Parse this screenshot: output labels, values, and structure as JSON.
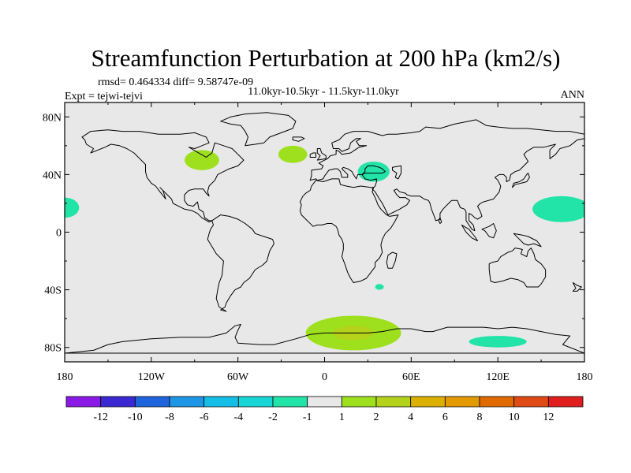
{
  "chart_data": {
    "type": "heatmap",
    "title": "Streamfunction Perturbation at 200 hPa (km2/s)",
    "stats": "rmsd= 0.464334 diff= 9.58747e-09",
    "left_label": "Expt = tejwi-tejvi",
    "center_label": "11.0kyr-10.5kyr - 11.5kyr-11.0kyr",
    "right_label": "ANN",
    "x_ticks": [
      {
        "value": -180,
        "label": "180"
      },
      {
        "value": -120,
        "label": "120W"
      },
      {
        "value": -60,
        "label": "60W"
      },
      {
        "value": 0,
        "label": "0"
      },
      {
        "value": 60,
        "label": "60E"
      },
      {
        "value": 120,
        "label": "120E"
      },
      {
        "value": 180,
        "label": "180"
      }
    ],
    "y_ticks": [
      {
        "value": 80,
        "label": "80N"
      },
      {
        "value": 40,
        "label": "40N"
      },
      {
        "value": 0,
        "label": "0"
      },
      {
        "value": -40,
        "label": "40S"
      },
      {
        "value": -80,
        "label": "80S"
      }
    ],
    "xlim": [
      -180,
      180
    ],
    "ylim": [
      -90,
      90
    ],
    "colorbar": {
      "colors": [
        "#8c1ae6",
        "#3c28d2",
        "#1e64dc",
        "#1e96e6",
        "#14bee6",
        "#18d6d6",
        "#22e3a8",
        "#e8e8e8",
        "#9ee01e",
        "#b4d21a",
        "#dcb000",
        "#e39a00",
        "#e06a00",
        "#e04a14",
        "#e01e1e"
      ],
      "labels": [
        "-12",
        "-10",
        "-8",
        "-6",
        "-4",
        "-2",
        "-1",
        "1",
        "2",
        "4",
        "6",
        "8",
        "10",
        "12"
      ]
    },
    "anomalies": [
      {
        "region": "North America",
        "lon": -85,
        "lat": 50,
        "rx": 12,
        "ry": 7,
        "color": "#9ee01e",
        "value": 2
      },
      {
        "region": "North Atlantic",
        "lon": -22,
        "lat": 54,
        "rx": 10,
        "ry": 6,
        "color": "#9ee01e",
        "value": 2
      },
      {
        "region": "Black Sea",
        "lon": 34,
        "lat": 42,
        "rx": 11,
        "ry": 7,
        "color": "#22e3a8",
        "value": -1
      },
      {
        "region": "Central Pacific",
        "lon": -180,
        "lat": 17,
        "rx": 10,
        "ry": 7,
        "color": "#22e3a8",
        "value": -1
      },
      {
        "region": "NW Pacific",
        "lon": 164,
        "lat": 16,
        "rx": 20,
        "ry": 9,
        "color": "#22e3a8",
        "value": -1
      },
      {
        "region": "South Atlantic",
        "lon": 38,
        "lat": -38,
        "rx": 3,
        "ry": 2,
        "color": "#22e3a8",
        "value": -1
      },
      {
        "region": "Antarctica (0-60E)",
        "lon": 20,
        "lat": -70,
        "rx": 33,
        "ry": 12,
        "color": "#9ee01e",
        "value": 2
      },
      {
        "region": "Antarctica core",
        "lon": 20,
        "lat": -70,
        "rx": 14,
        "ry": 5,
        "color": "#b4d21a",
        "value": 4
      },
      {
        "region": "South Indian Ocean",
        "lon": 120,
        "lat": -76,
        "rx": 20,
        "ry": 4,
        "color": "#22e3a8",
        "value": -1
      }
    ]
  }
}
